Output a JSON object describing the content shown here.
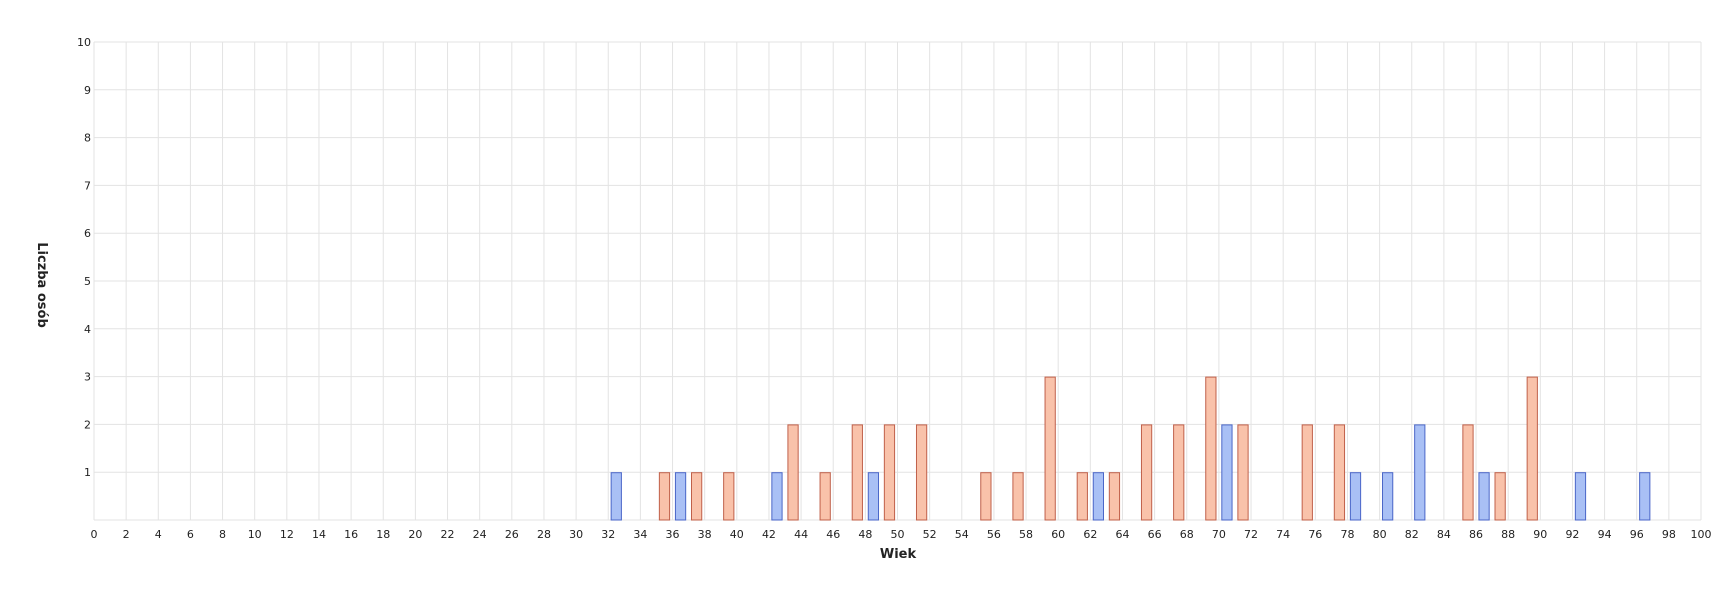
{
  "chart_data": {
    "type": "bar",
    "xlabel": "Wiek",
    "ylabel": "Liczba osób",
    "xlim": [
      0,
      100
    ],
    "ylim": [
      0,
      10
    ],
    "x_ticks": [
      "0",
      "2",
      "4",
      "6",
      "8",
      "10",
      "12",
      "14",
      "16",
      "18",
      "20",
      "22",
      "24",
      "26",
      "28",
      "30",
      "32",
      "34",
      "36",
      "38",
      "40",
      "42",
      "44",
      "46",
      "48",
      "50",
      "52",
      "54",
      "56",
      "58",
      "60",
      "62",
      "64",
      "66",
      "68",
      "70",
      "72",
      "74",
      "76",
      "78",
      "80",
      "82",
      "84",
      "86",
      "88",
      "90",
      "92",
      "94",
      "96",
      "98",
      "100"
    ],
    "y_ticks": [
      "1",
      "2",
      "3",
      "4",
      "5",
      "6",
      "7",
      "8",
      "9",
      "10"
    ],
    "grid": true,
    "legend": "none",
    "series": [
      {
        "color": "#a9c0f5",
        "stroke": "#4a66c8",
        "points": [
          {
            "x": 32,
            "y": 1
          },
          {
            "x": 36,
            "y": 1
          },
          {
            "x": 42,
            "y": 1
          },
          {
            "x": 48,
            "y": 1
          },
          {
            "x": 62,
            "y": 1
          },
          {
            "x": 70,
            "y": 2
          },
          {
            "x": 78,
            "y": 1
          },
          {
            "x": 80,
            "y": 1
          },
          {
            "x": 82,
            "y": 2
          },
          {
            "x": 86,
            "y": 1
          },
          {
            "x": 92,
            "y": 1
          },
          {
            "x": 96,
            "y": 1
          }
        ]
      },
      {
        "color": "#f9c2aa",
        "stroke": "#c0604a",
        "points": [
          {
            "x": 35,
            "y": 1
          },
          {
            "x": 37,
            "y": 1
          },
          {
            "x": 39,
            "y": 1
          },
          {
            "x": 43,
            "y": 2
          },
          {
            "x": 45,
            "y": 1
          },
          {
            "x": 47,
            "y": 2
          },
          {
            "x": 49,
            "y": 2
          },
          {
            "x": 51,
            "y": 2
          },
          {
            "x": 55,
            "y": 1
          },
          {
            "x": 57,
            "y": 1
          },
          {
            "x": 59,
            "y": 3
          },
          {
            "x": 61,
            "y": 1
          },
          {
            "x": 63,
            "y": 1
          },
          {
            "x": 65,
            "y": 2
          },
          {
            "x": 67,
            "y": 2
          },
          {
            "x": 69,
            "y": 3
          },
          {
            "x": 71,
            "y": 2
          },
          {
            "x": 75,
            "y": 2
          },
          {
            "x": 77,
            "y": 2
          },
          {
            "x": 85,
            "y": 2
          },
          {
            "x": 87,
            "y": 1
          },
          {
            "x": 89,
            "y": 3
          }
        ]
      }
    ]
  }
}
